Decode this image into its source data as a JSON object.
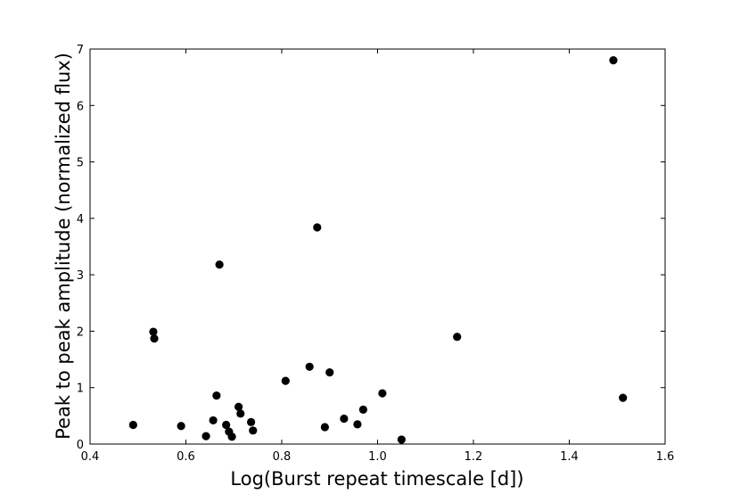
{
  "chart_data": {
    "type": "scatter",
    "title": "",
    "xlabel": "Log(Burst repeat timescale [d])",
    "ylabel": "Peak to peak amplitude (normalized flux)",
    "xlim": [
      0.4,
      1.6
    ],
    "ylim": [
      0,
      7
    ],
    "xticks": [
      "0.4",
      "0.6",
      "0.8",
      "1.0",
      "1.2",
      "1.4",
      "1.6"
    ],
    "yticks": [
      "0",
      "1",
      "2",
      "3",
      "4",
      "5",
      "6",
      "7"
    ],
    "grid": false,
    "legend": "none",
    "marker_color": "#000000",
    "points": [
      {
        "x": 0.49,
        "y": 0.34
      },
      {
        "x": 0.532,
        "y": 1.99
      },
      {
        "x": 0.534,
        "y": 1.87
      },
      {
        "x": 0.59,
        "y": 0.32
      },
      {
        "x": 0.642,
        "y": 0.14
      },
      {
        "x": 0.657,
        "y": 0.42
      },
      {
        "x": 0.664,
        "y": 0.86
      },
      {
        "x": 0.67,
        "y": 3.18
      },
      {
        "x": 0.684,
        "y": 0.34
      },
      {
        "x": 0.69,
        "y": 0.22
      },
      {
        "x": 0.696,
        "y": 0.13
      },
      {
        "x": 0.71,
        "y": 0.66
      },
      {
        "x": 0.714,
        "y": 0.54
      },
      {
        "x": 0.736,
        "y": 0.39
      },
      {
        "x": 0.74,
        "y": 0.24
      },
      {
        "x": 0.808,
        "y": 1.12
      },
      {
        "x": 0.858,
        "y": 1.37
      },
      {
        "x": 0.874,
        "y": 3.84
      },
      {
        "x": 0.89,
        "y": 0.3
      },
      {
        "x": 0.9,
        "y": 1.27
      },
      {
        "x": 0.93,
        "y": 0.45
      },
      {
        "x": 0.958,
        "y": 0.35
      },
      {
        "x": 0.97,
        "y": 0.61
      },
      {
        "x": 1.01,
        "y": 0.9
      },
      {
        "x": 1.05,
        "y": 0.08
      },
      {
        "x": 1.166,
        "y": 1.9
      },
      {
        "x": 1.492,
        "y": 6.8
      },
      {
        "x": 1.512,
        "y": 0.82
      }
    ]
  }
}
